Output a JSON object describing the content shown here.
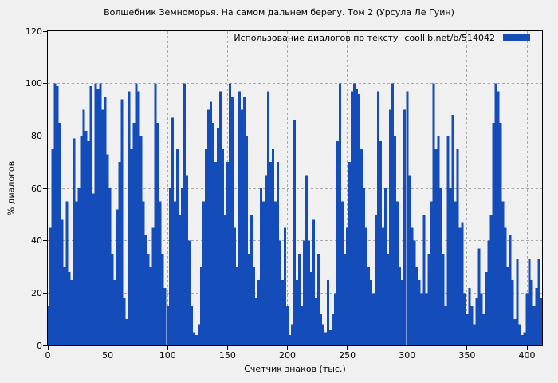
{
  "title": "Волшебник Земноморья. На самом дальнем берегу. Том 2 (Урсула Ле Гуин)",
  "legend": {
    "label": "Использование диалогов по тексту",
    "source": "coollib.net/b/514042",
    "swatch_color": "#144dba"
  },
  "colors": {
    "background": "#f0f0f0",
    "bar": "#144dba",
    "grid": "#a8a8a8",
    "axis": "#000000"
  },
  "chart_data": {
    "type": "bar",
    "title": "Волшебник Земноморья. На самом дальнем берегу. Том 2 (Урсула Ле Гуин)",
    "xlabel": "Счетчик знаков (тыс.)",
    "ylabel": "% диалогов",
    "xlim": [
      0,
      413
    ],
    "ylim": [
      0,
      120
    ],
    "x_ticks": [
      0,
      50,
      100,
      150,
      200,
      250,
      300,
      350,
      400
    ],
    "y_ticks": [
      0,
      20,
      40,
      60,
      80,
      100,
      120
    ],
    "grid": true,
    "legend_position": "top-right",
    "bar_color": "#144dba",
    "x_start": 0,
    "x_step": 2,
    "values": [
      15,
      45,
      75,
      100,
      99,
      85,
      48,
      30,
      55,
      28,
      25,
      79,
      55,
      60,
      80,
      90,
      82,
      78,
      99,
      58,
      100,
      98,
      100,
      90,
      95,
      73,
      60,
      35,
      25,
      52,
      70,
      94,
      18,
      10,
      97,
      75,
      85,
      100,
      97,
      80,
      55,
      42,
      35,
      30,
      45,
      100,
      85,
      55,
      35,
      22,
      15,
      60,
      87,
      55,
      75,
      50,
      60,
      100,
      65,
      40,
      15,
      5,
      4,
      8,
      30,
      55,
      75,
      90,
      93,
      85,
      70,
      83,
      97,
      75,
      50,
      70,
      100,
      95,
      45,
      30,
      97,
      90,
      95,
      80,
      35,
      50,
      30,
      18,
      25,
      60,
      55,
      65,
      97,
      70,
      75,
      55,
      70,
      40,
      25,
      45,
      15,
      4,
      8,
      86,
      25,
      35,
      15,
      40,
      65,
      40,
      28,
      48,
      18,
      35,
      12,
      8,
      5,
      25,
      6,
      12,
      20,
      78,
      100,
      55,
      35,
      45,
      70,
      97,
      100,
      98,
      96,
      75,
      60,
      45,
      30,
      25,
      20,
      50,
      97,
      78,
      45,
      60,
      35,
      90,
      100,
      80,
      55,
      30,
      25,
      90,
      97,
      65,
      45,
      40,
      30,
      25,
      20,
      50,
      20,
      35,
      55,
      100,
      75,
      80,
      60,
      35,
      15,
      80,
      60,
      88,
      55,
      75,
      45,
      47,
      20,
      12,
      22,
      15,
      8,
      18,
      37,
      20,
      12,
      28,
      40,
      50,
      85,
      100,
      97,
      85,
      55,
      45,
      30,
      42,
      25,
      10,
      33,
      8,
      4,
      5,
      20,
      33,
      25,
      15,
      22,
      33,
      18
    ]
  }
}
